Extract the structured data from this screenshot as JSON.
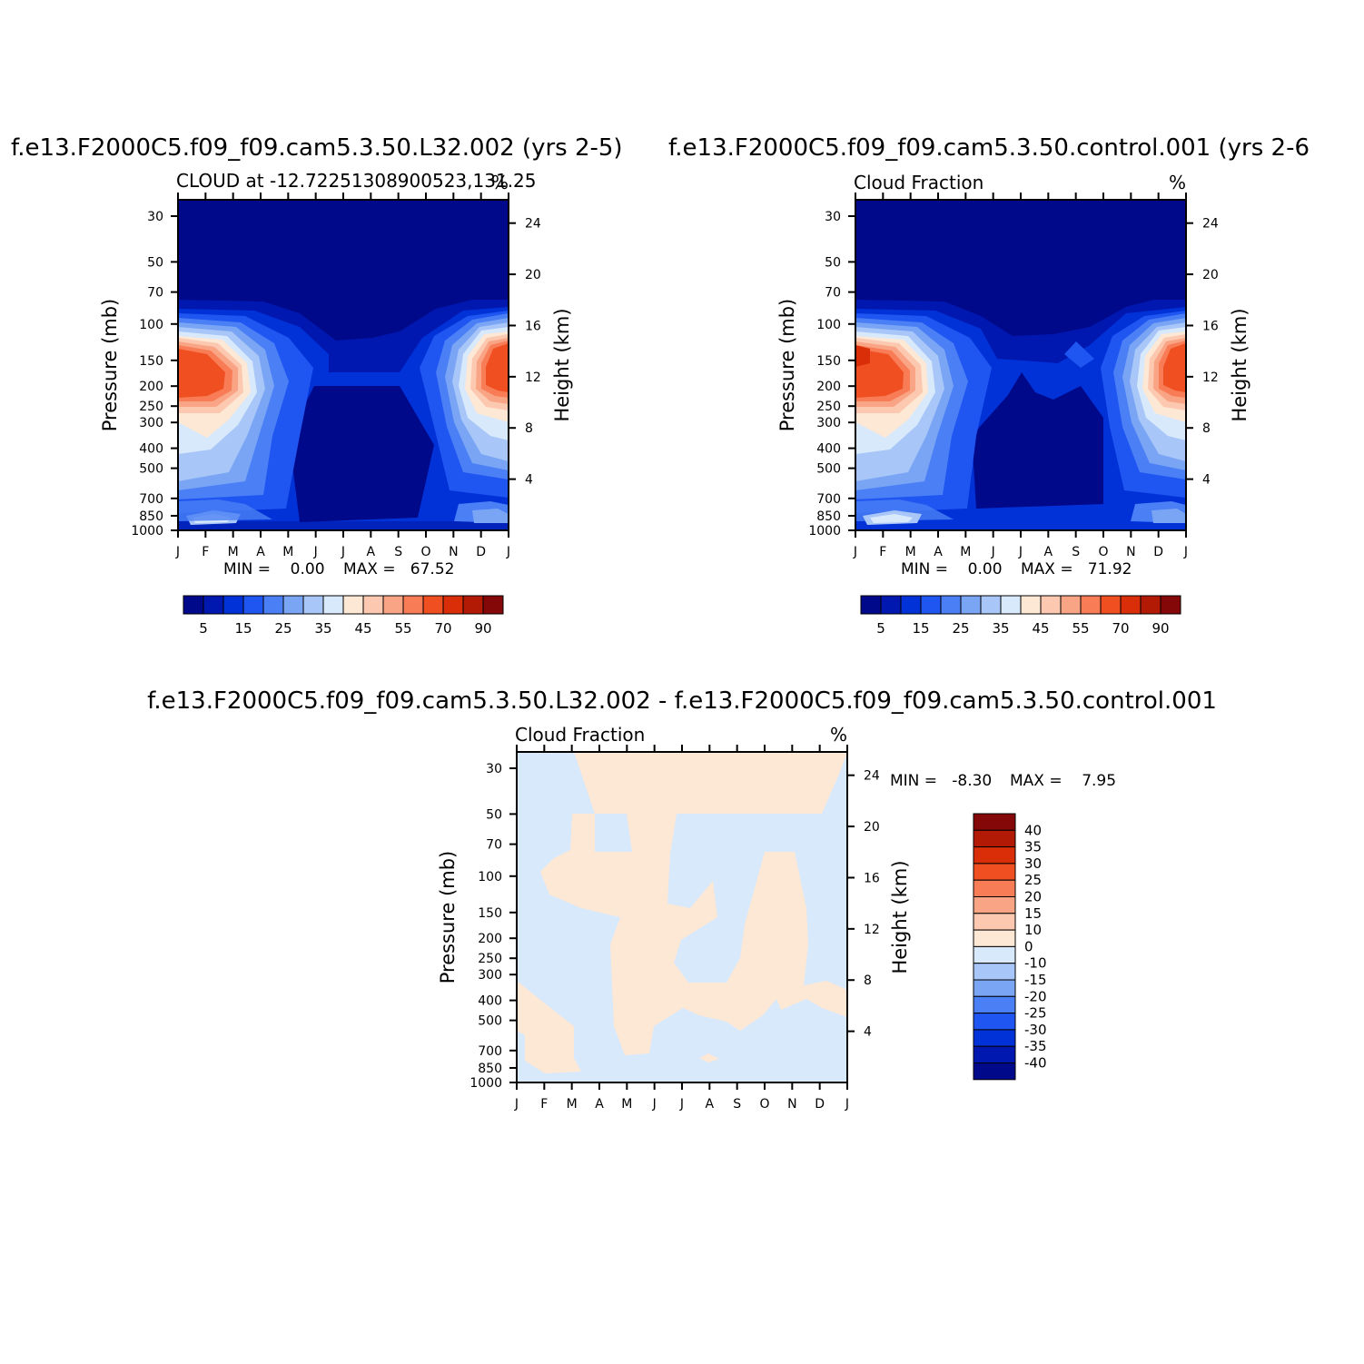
{
  "colors": {
    "abs_palette": [
      "#00098a",
      "#0018b0",
      "#0032d8",
      "#1f55f0",
      "#4a7ff5",
      "#7aa5f5",
      "#a8c6f7",
      "#d8e9fb",
      "#fde7d5",
      "#fcc8b0",
      "#f9a585",
      "#f87c55",
      "#f04f22",
      "#d92e08",
      "#b31a05",
      "#850808"
    ],
    "diff_palette": [
      "#850808",
      "#b31a05",
      "#d92e08",
      "#f04f22",
      "#f87c55",
      "#f9a585",
      "#fcc8b0",
      "#fde7d5",
      "#d8e9fb",
      "#a8c6f7",
      "#7aa5f5",
      "#4a7ff5",
      "#1f55f0",
      "#0032d8",
      "#0018b0",
      "#00098a"
    ]
  },
  "chart_data": [
    {
      "type": "heatmap",
      "title": "f.e13.F2000C5.f09_f09.cam5.3.50.L32.002 (yrs 2-5)",
      "subtitle": "CLOUD at -12.72251308900523,131.25",
      "units": "%",
      "xlabel": "",
      "ylabel": "Pressure (mb)",
      "y2label": "Height (km)",
      "x_ticks": [
        "J",
        "F",
        "M",
        "A",
        "M",
        "J",
        "J",
        "A",
        "S",
        "O",
        "N",
        "D",
        "J"
      ],
      "y_ticks": [
        "30",
        "50",
        "70",
        "100",
        "150",
        "200",
        "250",
        "300",
        "400",
        "500",
        "700",
        "850",
        "1000"
      ],
      "y_ticks_values": [
        30,
        50,
        70,
        100,
        150,
        200,
        250,
        300,
        400,
        500,
        700,
        850,
        1000
      ],
      "y2_ticks": [
        "24",
        "20",
        "16",
        "12",
        "8",
        "4"
      ],
      "y2_ticks_values": [
        24,
        20,
        16,
        12,
        8,
        4
      ],
      "ylim": [
        1000,
        25
      ],
      "min_text": "MIN =    0.00",
      "max_text": "MAX =   67.52",
      "colorbar_labels": [
        "5",
        "15",
        "25",
        "35",
        "45",
        "55",
        "70",
        "90"
      ],
      "colorbar_orientation": "horizontal"
    },
    {
      "type": "heatmap",
      "title": "f.e13.F2000C5.f09_f09.cam5.3.50.control.001 (yrs 2-6",
      "subtitle": "Cloud Fraction",
      "units": "%",
      "xlabel": "",
      "ylabel": "Pressure (mb)",
      "y2label": "Height (km)",
      "x_ticks": [
        "J",
        "F",
        "M",
        "A",
        "M",
        "J",
        "J",
        "A",
        "S",
        "O",
        "N",
        "D",
        "J"
      ],
      "y_ticks": [
        "30",
        "50",
        "70",
        "100",
        "150",
        "200",
        "250",
        "300",
        "400",
        "500",
        "700",
        "850",
        "1000"
      ],
      "y_ticks_values": [
        30,
        50,
        70,
        100,
        150,
        200,
        250,
        300,
        400,
        500,
        700,
        850,
        1000
      ],
      "y2_ticks": [
        "24",
        "20",
        "16",
        "12",
        "8",
        "4"
      ],
      "y2_ticks_values": [
        24,
        20,
        16,
        12,
        8,
        4
      ],
      "ylim": [
        1000,
        25
      ],
      "min_text": "MIN =    0.00",
      "max_text": "MAX =   71.92",
      "colorbar_labels": [
        "5",
        "15",
        "25",
        "35",
        "45",
        "55",
        "70",
        "90"
      ],
      "colorbar_orientation": "horizontal"
    },
    {
      "type": "heatmap",
      "title": "f.e13.F2000C5.f09_f09.cam5.3.50.L32.002 - f.e13.F2000C5.f09_f09.cam5.3.50.control.001",
      "subtitle": "Cloud Fraction",
      "units": "%",
      "xlabel": "",
      "ylabel": "Pressure (mb)",
      "y2label": "Height (km)",
      "x_ticks": [
        "J",
        "F",
        "M",
        "A",
        "M",
        "J",
        "J",
        "A",
        "S",
        "O",
        "N",
        "D",
        "J"
      ],
      "y_ticks": [
        "30",
        "50",
        "70",
        "100",
        "150",
        "200",
        "250",
        "300",
        "400",
        "500",
        "700",
        "850",
        "1000"
      ],
      "y_ticks_values": [
        30,
        50,
        70,
        100,
        150,
        200,
        250,
        300,
        400,
        500,
        700,
        850,
        1000
      ],
      "y2_ticks": [
        "24",
        "20",
        "16",
        "12",
        "8",
        "4"
      ],
      "y2_ticks_values": [
        24,
        20,
        16,
        12,
        8,
        4
      ],
      "ylim": [
        1000,
        25
      ],
      "min_text": "MIN =   -8.30",
      "max_text": "MAX =    7.95",
      "colorbar_labels": [
        "40",
        "35",
        "30",
        "25",
        "20",
        "15",
        "10",
        "0",
        "-10",
        "-15",
        "-20",
        "-25",
        "-30",
        "-35",
        "-40"
      ],
      "colorbar_orientation": "vertical"
    }
  ]
}
